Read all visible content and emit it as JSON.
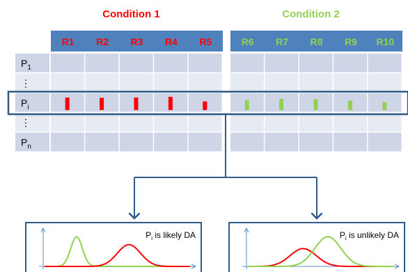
{
  "conditions": [
    {
      "label": "Condition 1",
      "color": "#ff0000"
    },
    {
      "label": "Condition 2",
      "color": "#92d050"
    }
  ],
  "replicates": [
    "R1",
    "R2",
    "R3",
    "R4",
    "R5",
    "R6",
    "R7",
    "R8",
    "R9",
    "R10"
  ],
  "replicate_condition": [
    0,
    0,
    0,
    0,
    0,
    1,
    1,
    1,
    1,
    1
  ],
  "rows": [
    {
      "base": "P",
      "sub": "1"
    },
    {
      "base": "⋮",
      "sub": ""
    },
    {
      "base": "P",
      "sub": "i"
    },
    {
      "base": "⋮",
      "sub": ""
    },
    {
      "base": "P",
      "sub": "n"
    }
  ],
  "highlight_row": 2,
  "bar_levels": [
    0.9,
    0.88,
    0.9,
    0.95,
    0.62,
    0.72,
    0.8,
    0.78,
    0.68,
    0.58
  ],
  "plots": [
    {
      "label_base": "P",
      "label_sub": "i",
      "label_rest": " is likely DA",
      "curves": [
        {
          "color": "#92d050",
          "mean": 0.22,
          "sd": 0.04,
          "peak": 0.75
        },
        {
          "color": "#ff0000",
          "mean": 0.58,
          "sd": 0.08,
          "peak": 0.55
        }
      ]
    },
    {
      "label_base": "P",
      "label_sub": "i",
      "label_rest": " is unlikely DA",
      "curves": [
        {
          "color": "#ff0000",
          "mean": 0.38,
          "sd": 0.09,
          "peak": 0.45
        },
        {
          "color": "#92d050",
          "mean": 0.55,
          "sd": 0.09,
          "peak": 0.75
        }
      ]
    }
  ],
  "colors": {
    "header_bg": "#4f81bd",
    "cell_dark": "#cdd5e6",
    "cell_light": "#e6eaf3",
    "frame": "#2e5b86",
    "axis": "#5b8ec9"
  }
}
